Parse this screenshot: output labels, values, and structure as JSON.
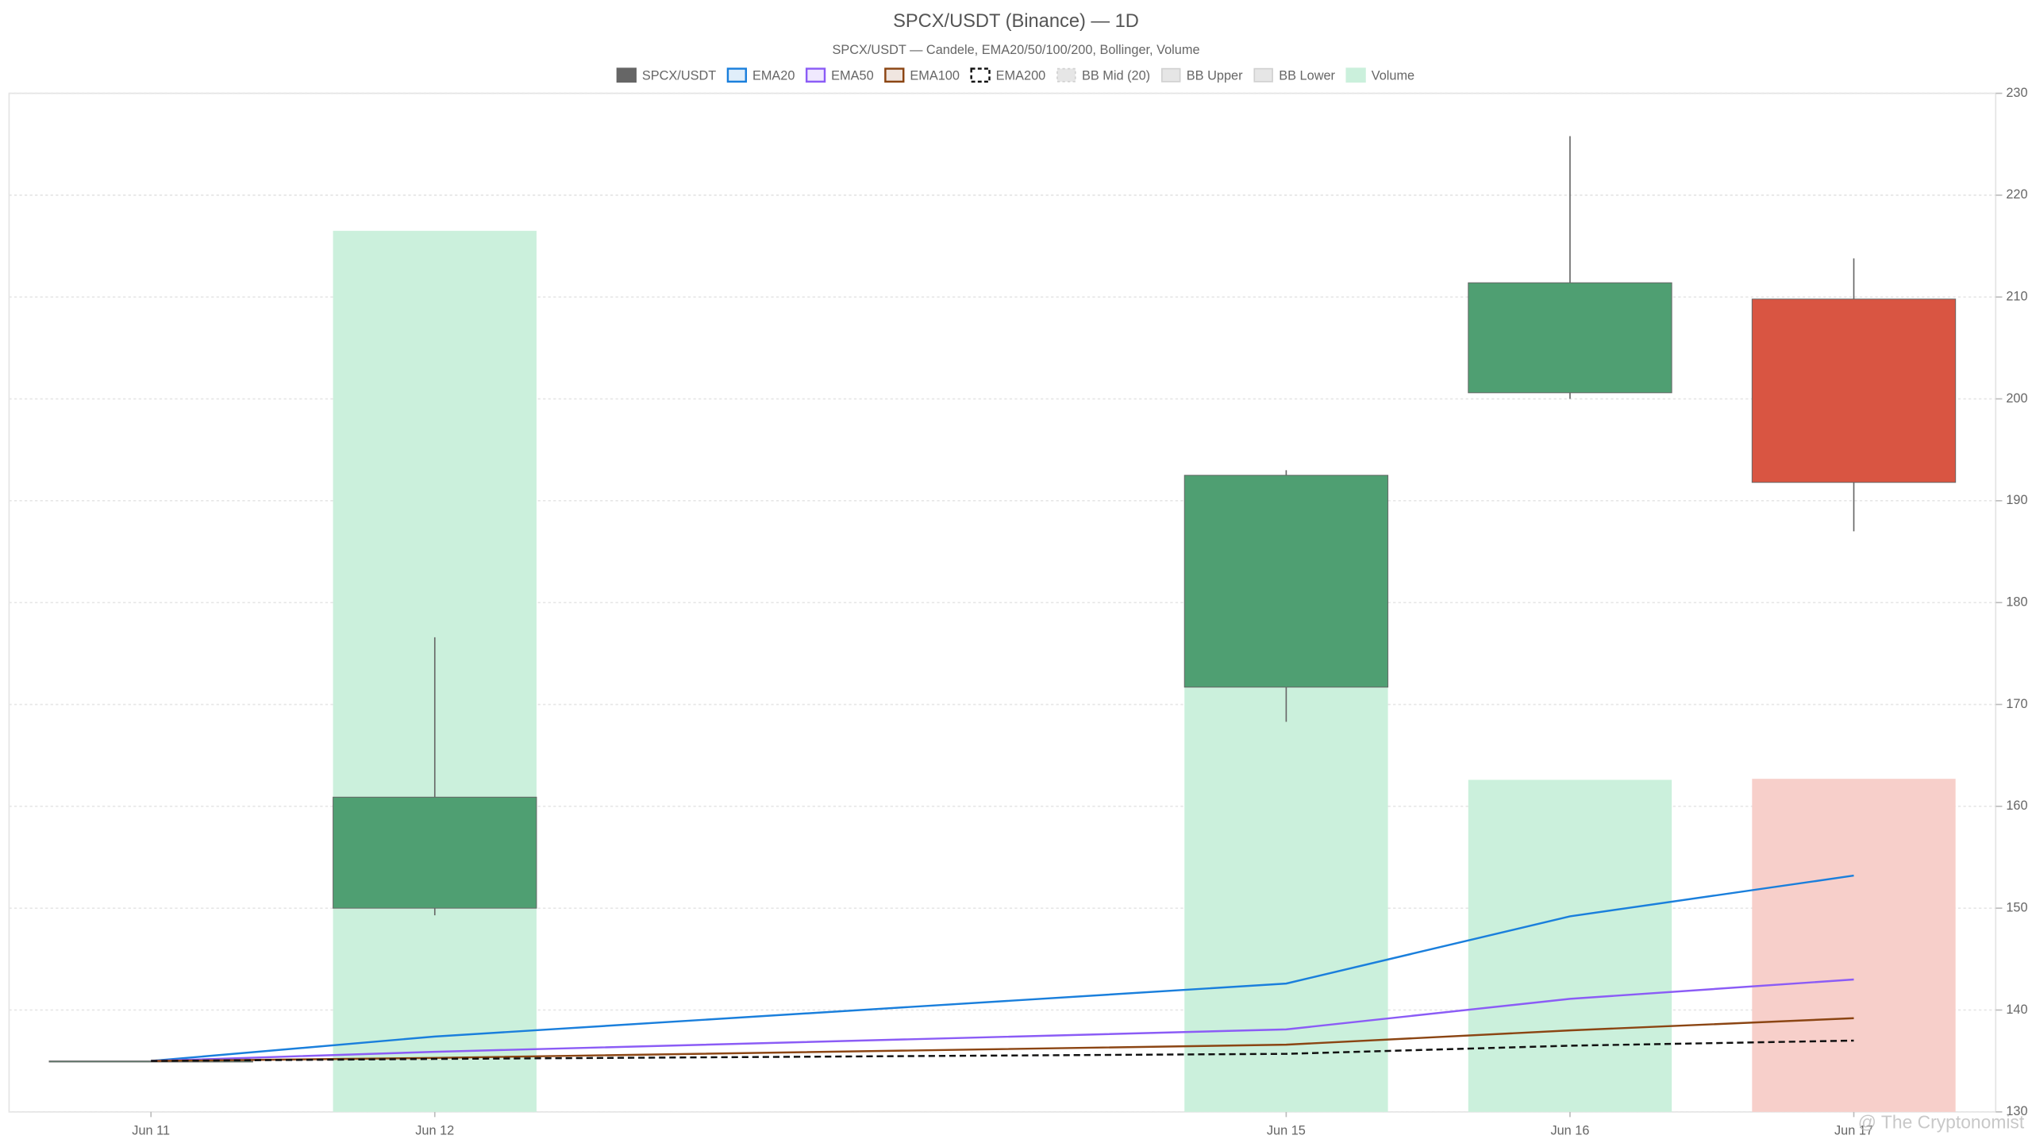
{
  "chart_data": {
    "type": "candlestick",
    "title": "SPCX/USDT (Binance) — 1D",
    "subtitle": "SPCX/USDT — Candele, EMA20/50/100/200, Bollinger, Volume",
    "x": [
      11,
      12,
      15,
      16,
      17
    ],
    "xlim": [
      10.5,
      17.5
    ],
    "xticks": [
      {
        "value": 11,
        "label": "Jun 11"
      },
      {
        "value": 12,
        "label": "Jun 12"
      },
      {
        "value": 15,
        "label": "Jun 15"
      },
      {
        "value": 16,
        "label": "Jun 16"
      },
      {
        "value": 17,
        "label": "Jun 17"
      }
    ],
    "candles": {
      "name": "SPCX/USDT",
      "color": "#666666",
      "open": [
        135,
        150.0,
        171.7,
        200.6,
        209.8
      ],
      "high": [
        135,
        176.6,
        193.0,
        225.8,
        213.8
      ],
      "low": [
        135,
        149.3,
        168.3,
        200.0,
        187.0
      ],
      "close": [
        135,
        160.9,
        192.5,
        211.4,
        191.8
      ],
      "up_color": "#4f9f72",
      "down_color": "#d95542"
    },
    "lines": [
      {
        "name": "EMA20",
        "color": "#1a7fdc",
        "dashed": false,
        "values": [
          135,
          137.4,
          142.6,
          149.2,
          153.2
        ]
      },
      {
        "name": "EMA50",
        "color": "#8b5cf6",
        "dashed": false,
        "values": [
          135,
          135.9,
          138.1,
          141.1,
          143.0
        ]
      },
      {
        "name": "EMA100",
        "color": "#8b4513",
        "dashed": false,
        "values": [
          135,
          135.3,
          136.6,
          138.0,
          139.2
        ]
      },
      {
        "name": "EMA200",
        "color": "#111111",
        "dashed": true,
        "values": [
          135,
          135.2,
          135.7,
          136.5,
          137.0
        ]
      }
    ],
    "hidden_series": [
      "BB Mid (20)",
      "BB Upper",
      "BB Lower"
    ],
    "volume": {
      "name": "Volume",
      "values": [
        0,
        86.5,
        55.7,
        32.6,
        32.7
      ],
      "ylim": [
        0,
        100
      ],
      "up_color": "#cbf0dc",
      "down_color": "#f7cfca"
    },
    "ylim": [
      130,
      230
    ],
    "yticks": [
      130,
      140,
      150,
      160,
      170,
      180,
      190,
      200,
      210,
      220,
      230
    ],
    "grid": true,
    "watermark": "@ The Cryptonomist"
  }
}
